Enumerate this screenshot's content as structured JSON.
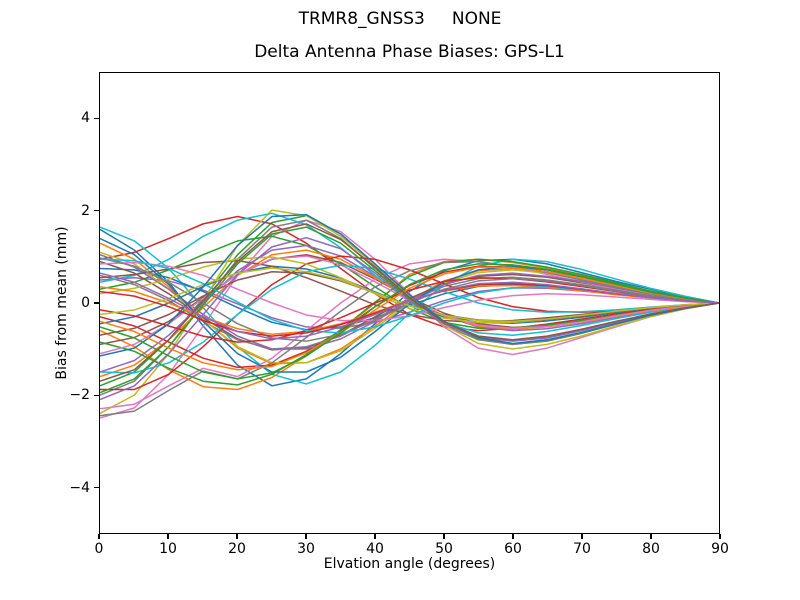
{
  "chart_data": {
    "type": "line",
    "suptitle": "TRMR8_GNSS3     NONE",
    "title": "Delta Antenna Phase Biases: GPS-L1",
    "xlabel": "Elvation angle (degrees)",
    "ylabel": "Bias from mean (mm)",
    "xlim": [
      0,
      90
    ],
    "ylim": [
      -5,
      5
    ],
    "grid": false,
    "legend": "none",
    "xticks": [
      {
        "value": 0,
        "label": "0"
      },
      {
        "value": 10,
        "label": "10"
      },
      {
        "value": 20,
        "label": "20"
      },
      {
        "value": 30,
        "label": "30"
      },
      {
        "value": 40,
        "label": "40"
      },
      {
        "value": 50,
        "label": "50"
      },
      {
        "value": 60,
        "label": "60"
      },
      {
        "value": 70,
        "label": "70"
      },
      {
        "value": 80,
        "label": "80"
      },
      {
        "value": 90,
        "label": "90"
      }
    ],
    "yticks": [
      {
        "value": 4,
        "label": "4"
      },
      {
        "value": 2,
        "label": "2"
      },
      {
        "value": 0,
        "label": "0"
      },
      {
        "value": -2,
        "label": "−2"
      },
      {
        "value": -4,
        "label": "−4"
      }
    ],
    "x": [
      0,
      5,
      10,
      15,
      20,
      25,
      30,
      35,
      40,
      45,
      50,
      55,
      60,
      65,
      70,
      75,
      80,
      85,
      90
    ],
    "series": [
      {
        "color": "#1f77b4",
        "values": [
          1.6,
          1.15,
          0.45,
          -0.5,
          -1.35,
          -1.8,
          -1.65,
          -1.1,
          -0.45,
          0.25,
          0.7,
          0.92,
          0.95,
          0.85,
          0.66,
          0.47,
          0.3,
          0.14,
          0
        ]
      },
      {
        "color": "#ff7f0e",
        "values": [
          -0.6,
          -0.95,
          -1.45,
          -1.82,
          -1.88,
          -1.62,
          -1.15,
          -0.6,
          0.0,
          0.62,
          0.9,
          0.95,
          0.88,
          0.76,
          0.6,
          0.43,
          0.26,
          0.12,
          0
        ]
      },
      {
        "color": "#2ca02c",
        "values": [
          -1.8,
          -1.5,
          -0.8,
          0.1,
          1.05,
          1.75,
          1.9,
          1.5,
          0.82,
          0.15,
          -0.42,
          -0.78,
          -0.9,
          -0.83,
          -0.66,
          -0.46,
          -0.27,
          -0.12,
          0
        ]
      },
      {
        "color": "#d62728",
        "values": [
          0.95,
          1.1,
          1.4,
          1.72,
          1.88,
          1.72,
          1.3,
          0.75,
          0.2,
          -0.25,
          -0.52,
          -0.6,
          -0.55,
          -0.46,
          -0.35,
          -0.24,
          -0.14,
          -0.06,
          0
        ]
      },
      {
        "color": "#9467bd",
        "values": [
          0.5,
          0.55,
          0.48,
          0.28,
          -0.02,
          -0.32,
          -0.52,
          -0.55,
          -0.42,
          -0.2,
          0.05,
          0.25,
          0.33,
          0.32,
          0.26,
          0.19,
          0.11,
          0.05,
          0
        ]
      },
      {
        "color": "#8c564b",
        "values": [
          -0.9,
          -0.75,
          -0.4,
          0.12,
          0.62,
          0.95,
          1.05,
          0.88,
          0.52,
          0.12,
          -0.22,
          -0.45,
          -0.53,
          -0.5,
          -0.4,
          -0.28,
          -0.17,
          -0.08,
          0
        ]
      },
      {
        "color": "#e377c2",
        "values": [
          -2.5,
          -2.28,
          -1.55,
          -0.5,
          0.6,
          1.45,
          1.8,
          1.55,
          0.95,
          0.2,
          -0.52,
          -0.98,
          -1.12,
          -0.98,
          -0.75,
          -0.52,
          -0.3,
          -0.13,
          0
        ]
      },
      {
        "color": "#7f7f7f",
        "values": [
          -2.0,
          -1.7,
          -0.95,
          0.0,
          0.95,
          1.65,
          1.8,
          1.4,
          0.75,
          0.08,
          -0.48,
          -0.8,
          -0.9,
          -0.82,
          -0.65,
          -0.46,
          -0.27,
          -0.12,
          0
        ]
      },
      {
        "color": "#bcbd22",
        "values": [
          -2.4,
          -2.0,
          -1.1,
          0.05,
          1.25,
          2.02,
          1.9,
          1.45,
          0.82,
          0.15,
          -0.48,
          -0.88,
          -1.0,
          -0.9,
          -0.72,
          -0.5,
          -0.3,
          -0.13,
          0
        ]
      },
      {
        "color": "#17becf",
        "values": [
          1.65,
          1.35,
          0.75,
          -0.1,
          -0.95,
          -1.55,
          -1.76,
          -1.5,
          -0.92,
          -0.22,
          0.4,
          0.8,
          0.95,
          0.9,
          0.73,
          0.52,
          0.32,
          0.15,
          0
        ]
      },
      {
        "color": "#1f77b4",
        "values": [
          0.75,
          0.72,
          0.55,
          0.25,
          -0.1,
          -0.42,
          -0.58,
          -0.52,
          -0.32,
          -0.05,
          0.2,
          0.36,
          0.4,
          0.36,
          0.29,
          0.2,
          0.12,
          0.05,
          0
        ]
      },
      {
        "color": "#ff7f0e",
        "values": [
          1.3,
          0.95,
          0.35,
          -0.35,
          -0.98,
          -1.32,
          -1.3,
          -1.0,
          -0.5,
          0.05,
          0.48,
          0.7,
          0.75,
          0.68,
          0.55,
          0.38,
          0.23,
          0.1,
          0
        ]
      },
      {
        "color": "#2ca02c",
        "values": [
          0.3,
          0.45,
          0.72,
          1.05,
          1.35,
          1.45,
          1.25,
          0.85,
          0.35,
          -0.12,
          -0.42,
          -0.55,
          -0.55,
          -0.48,
          -0.38,
          -0.27,
          -0.16,
          -0.07,
          0
        ]
      },
      {
        "color": "#d62728",
        "values": [
          -0.3,
          -0.5,
          -0.85,
          -1.2,
          -1.4,
          -1.35,
          -1.05,
          -0.6,
          -0.08,
          0.38,
          0.67,
          0.8,
          0.78,
          0.68,
          0.54,
          0.38,
          0.22,
          0.1,
          0
        ]
      },
      {
        "color": "#9467bd",
        "values": [
          -1.5,
          -1.25,
          -0.7,
          0.0,
          0.7,
          1.15,
          1.25,
          1.02,
          0.58,
          0.1,
          -0.28,
          -0.52,
          -0.6,
          -0.56,
          -0.45,
          -0.31,
          -0.19,
          -0.08,
          0
        ]
      },
      {
        "color": "#8c564b",
        "values": [
          0.9,
          0.65,
          0.2,
          -0.32,
          -0.78,
          -1.02,
          -0.97,
          -0.7,
          -0.3,
          0.1,
          0.42,
          0.58,
          0.62,
          0.56,
          0.44,
          0.31,
          0.18,
          0.08,
          0
        ]
      },
      {
        "color": "#e377c2",
        "values": [
          -2.3,
          -2.2,
          -1.8,
          -1.42,
          -1.6,
          -1.2,
          -0.6,
          0.0,
          0.52,
          0.85,
          0.95,
          0.9,
          0.78,
          0.62,
          0.46,
          0.3,
          0.17,
          0.08,
          0
        ]
      },
      {
        "color": "#7f7f7f",
        "values": [
          0.6,
          0.4,
          0.05,
          -0.4,
          -0.8,
          -1.0,
          -0.95,
          -0.72,
          -0.35,
          0.05,
          0.36,
          0.53,
          0.56,
          0.5,
          0.4,
          0.28,
          0.16,
          0.07,
          0
        ]
      },
      {
        "color": "#bcbd22",
        "values": [
          1.1,
          0.85,
          0.3,
          -0.36,
          -0.95,
          -1.3,
          -1.3,
          -1.04,
          -0.55,
          0.0,
          0.44,
          0.66,
          0.72,
          0.65,
          0.52,
          0.36,
          0.22,
          0.1,
          0
        ]
      },
      {
        "color": "#17becf",
        "values": [
          0.45,
          0.6,
          0.95,
          1.45,
          1.8,
          1.95,
          1.7,
          1.2,
          0.6,
          0.02,
          -0.42,
          -0.65,
          -0.7,
          -0.62,
          -0.49,
          -0.34,
          -0.2,
          -0.09,
          0
        ]
      },
      {
        "color": "#1f77b4",
        "values": [
          -0.45,
          -0.3,
          0.0,
          0.36,
          0.66,
          0.8,
          0.74,
          0.54,
          0.24,
          -0.06,
          -0.3,
          -0.42,
          -0.44,
          -0.39,
          -0.31,
          -0.21,
          -0.12,
          -0.05,
          0
        ]
      },
      {
        "color": "#ff7f0e",
        "values": [
          -1.6,
          -1.35,
          -0.8,
          -0.1,
          0.6,
          1.05,
          1.15,
          0.95,
          0.55,
          0.1,
          -0.28,
          -0.5,
          -0.57,
          -0.52,
          -0.42,
          -0.29,
          -0.17,
          -0.08,
          0
        ]
      },
      {
        "color": "#2ca02c",
        "values": [
          -0.85,
          -1.05,
          -1.42,
          -1.7,
          -1.78,
          -1.55,
          -1.12,
          -0.58,
          0.02,
          0.58,
          0.88,
          0.95,
          0.9,
          0.78,
          0.62,
          0.44,
          0.26,
          0.12,
          0
        ]
      },
      {
        "color": "#d62728",
        "values": [
          -1.88,
          -1.88,
          -1.55,
          -0.95,
          -0.25,
          0.4,
          0.85,
          1.02,
          0.95,
          0.72,
          0.42,
          0.12,
          -0.08,
          -0.18,
          -0.2,
          -0.17,
          -0.12,
          -0.06,
          0
        ]
      },
      {
        "color": "#9467bd",
        "values": [
          1.05,
          0.78,
          0.3,
          -0.25,
          -0.72,
          -1.0,
          -1.0,
          -0.78,
          -0.4,
          0.05,
          0.4,
          0.6,
          0.65,
          0.58,
          0.47,
          0.33,
          0.2,
          0.09,
          0
        ]
      },
      {
        "color": "#8c564b",
        "values": [
          0.55,
          0.62,
          0.74,
          0.88,
          0.92,
          0.8,
          0.55,
          0.26,
          -0.04,
          -0.25,
          -0.38,
          -0.42,
          -0.38,
          -0.32,
          -0.25,
          -0.17,
          -0.1,
          -0.04,
          0
        ]
      },
      {
        "color": "#e377c2",
        "values": [
          -1.1,
          -0.9,
          -0.45,
          0.1,
          0.62,
          0.96,
          1.02,
          0.83,
          0.46,
          0.05,
          -0.28,
          -0.48,
          -0.55,
          -0.51,
          -0.41,
          -0.28,
          -0.16,
          -0.07,
          0
        ]
      },
      {
        "color": "#7f7f7f",
        "values": [
          -2.45,
          -2.35,
          -1.9,
          -1.48,
          -1.65,
          -1.3,
          -0.75,
          -0.18,
          0.35,
          0.7,
          0.88,
          0.9,
          0.8,
          0.66,
          0.5,
          0.35,
          0.2,
          0.09,
          0
        ]
      },
      {
        "color": "#bcbd22",
        "values": [
          0.2,
          0.32,
          0.52,
          0.78,
          0.96,
          1.0,
          0.85,
          0.55,
          0.2,
          -0.12,
          -0.33,
          -0.42,
          -0.42,
          -0.36,
          -0.28,
          -0.19,
          -0.11,
          -0.05,
          0
        ]
      },
      {
        "color": "#17becf",
        "values": [
          -1.5,
          -1.52,
          -1.3,
          -0.85,
          -0.25,
          0.3,
          0.68,
          0.82,
          0.75,
          0.52,
          0.25,
          0.0,
          -0.15,
          -0.2,
          -0.19,
          -0.15,
          -0.09,
          -0.04,
          0
        ]
      },
      {
        "color": "#1f77b4",
        "values": [
          1.4,
          1.05,
          0.4,
          -0.4,
          -1.1,
          -1.5,
          -1.5,
          -1.18,
          -0.62,
          -0.02,
          0.46,
          0.72,
          0.8,
          0.72,
          0.57,
          0.4,
          0.24,
          0.11,
          0
        ]
      },
      {
        "color": "#ff7f0e",
        "values": [
          0.35,
          0.25,
          0.0,
          -0.3,
          -0.56,
          -0.68,
          -0.62,
          -0.45,
          -0.2,
          0.06,
          0.26,
          0.37,
          0.38,
          0.34,
          0.27,
          0.18,
          0.11,
          0.05,
          0
        ]
      },
      {
        "color": "#2ca02c",
        "values": [
          -1.95,
          -1.65,
          -0.95,
          -0.05,
          0.85,
          1.5,
          1.65,
          1.3,
          0.7,
          0.08,
          -0.42,
          -0.72,
          -0.82,
          -0.75,
          -0.6,
          -0.42,
          -0.25,
          -0.11,
          0
        ]
      },
      {
        "color": "#d62728",
        "values": [
          -0.15,
          -0.28,
          -0.5,
          -0.72,
          -0.85,
          -0.8,
          -0.6,
          -0.32,
          0.0,
          0.28,
          0.47,
          0.55,
          0.53,
          0.46,
          0.36,
          0.25,
          0.14,
          0.06,
          0
        ]
      },
      {
        "color": "#9467bd",
        "values": [
          -2.1,
          -1.8,
          -1.1,
          -0.25,
          0.62,
          1.22,
          1.42,
          1.18,
          0.65,
          0.05,
          -0.45,
          -0.75,
          -0.83,
          -0.76,
          -0.6,
          -0.42,
          -0.25,
          -0.11,
          0
        ]
      },
      {
        "color": "#8c564b",
        "values": [
          -0.7,
          -0.55,
          -0.25,
          0.15,
          0.5,
          0.68,
          0.65,
          0.48,
          0.22,
          -0.05,
          -0.26,
          -0.37,
          -0.4,
          -0.36,
          -0.28,
          -0.19,
          -0.11,
          -0.05,
          0
        ]
      },
      {
        "color": "#e377c2",
        "values": [
          0.85,
          0.88,
          0.8,
          0.6,
          0.3,
          0.0,
          -0.26,
          -0.38,
          -0.38,
          -0.28,
          -0.1,
          0.06,
          0.16,
          0.2,
          0.18,
          0.13,
          0.08,
          0.03,
          0
        ]
      },
      {
        "color": "#7f7f7f",
        "values": [
          0.98,
          0.8,
          0.45,
          0.0,
          -0.45,
          -0.76,
          -0.83,
          -0.68,
          -0.38,
          0.0,
          0.3,
          0.48,
          0.53,
          0.48,
          0.38,
          0.26,
          0.15,
          0.07,
          0
        ]
      },
      {
        "color": "#bcbd22",
        "values": [
          -0.25,
          -0.15,
          0.1,
          0.4,
          0.65,
          0.76,
          0.68,
          0.5,
          0.22,
          -0.06,
          -0.27,
          -0.38,
          -0.4,
          -0.35,
          -0.27,
          -0.18,
          -0.1,
          -0.04,
          0
        ]
      },
      {
        "color": "#17becf",
        "values": [
          0.95,
          0.92,
          0.75,
          0.42,
          0.02,
          -0.36,
          -0.6,
          -0.65,
          -0.52,
          -0.28,
          0.0,
          0.22,
          0.33,
          0.35,
          0.29,
          0.21,
          0.12,
          0.05,
          0
        ]
      },
      {
        "color": "#1f77b4",
        "values": [
          -1.15,
          -0.98,
          -0.45,
          0.35,
          1.25,
          1.88,
          1.92,
          1.5,
          0.85,
          0.18,
          -0.4,
          -0.75,
          -0.88,
          -0.8,
          -0.64,
          -0.45,
          -0.27,
          -0.12,
          0
        ]
      },
      {
        "color": "#ff7f0e",
        "values": [
          -0.4,
          -0.62,
          -0.98,
          -1.3,
          -1.45,
          -1.38,
          -1.08,
          -0.65,
          -0.15,
          0.32,
          0.63,
          0.78,
          0.77,
          0.68,
          0.54,
          0.38,
          0.22,
          0.1,
          0
        ]
      },
      {
        "color": "#2ca02c",
        "values": [
          -0.52,
          -0.76,
          -1.15,
          -1.5,
          -1.65,
          -1.52,
          -1.15,
          -0.65,
          -0.08,
          0.4,
          0.72,
          0.85,
          0.83,
          0.73,
          0.58,
          0.41,
          0.24,
          0.11,
          0
        ]
      },
      {
        "color": "#d62728",
        "values": [
          0.25,
          0.15,
          -0.08,
          -0.38,
          -0.62,
          -0.72,
          -0.65,
          -0.47,
          -0.22,
          0.05,
          0.27,
          0.4,
          0.42,
          0.38,
          0.3,
          0.2,
          0.12,
          0.05,
          0
        ]
      },
      {
        "color": "#9467bd",
        "values": [
          0.65,
          0.45,
          0.1,
          -0.3,
          -0.62,
          -0.78,
          -0.72,
          -0.52,
          -0.25,
          0.05,
          0.28,
          0.42,
          0.45,
          0.4,
          0.31,
          0.21,
          0.12,
          0.05,
          0
        ]
      },
      {
        "color": "#8c564b",
        "values": [
          -1.7,
          -1.45,
          -0.8,
          0.05,
          0.9,
          1.55,
          1.72,
          1.38,
          0.78,
          0.12,
          -0.42,
          -0.72,
          -0.8,
          -0.72,
          -0.57,
          -0.4,
          -0.24,
          -0.11,
          0
        ]
      }
    ]
  }
}
